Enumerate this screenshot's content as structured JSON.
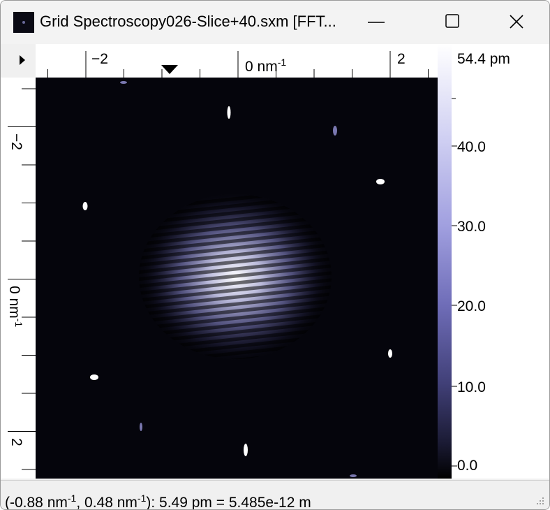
{
  "window": {
    "title": "Grid Spectroscopy026-Slice+40.sxm [FFT...",
    "icons": {
      "app": "sxm-image-icon",
      "minimize": "minimize-icon",
      "maximize": "maximize-icon",
      "close": "close-icon"
    }
  },
  "x_axis": {
    "ticks": [
      "−2",
      "0",
      "2"
    ],
    "unit_prefix": "nm",
    "unit_exp": "-1",
    "marker": "cursor-marker-icon"
  },
  "y_axis": {
    "ticks": [
      "−2",
      "0",
      "2"
    ],
    "unit_prefix": "nm",
    "unit_exp": "-1"
  },
  "colorbar": {
    "max_label": "54.4 pm",
    "ticks": [
      "40.0",
      "30.0",
      "20.0",
      "10.0",
      "0.0"
    ],
    "colors": [
      "#ffffff",
      "#a09fdf",
      "#414078",
      "#000000"
    ]
  },
  "status": {
    "open": "(",
    "x_value": "-0.88",
    "sep": ", ",
    "y_value": "0.48",
    "close_value": "): 5.49 pm = 5.485e-12 m",
    "unit_prefix": " nm",
    "unit_exp": "-1"
  }
}
